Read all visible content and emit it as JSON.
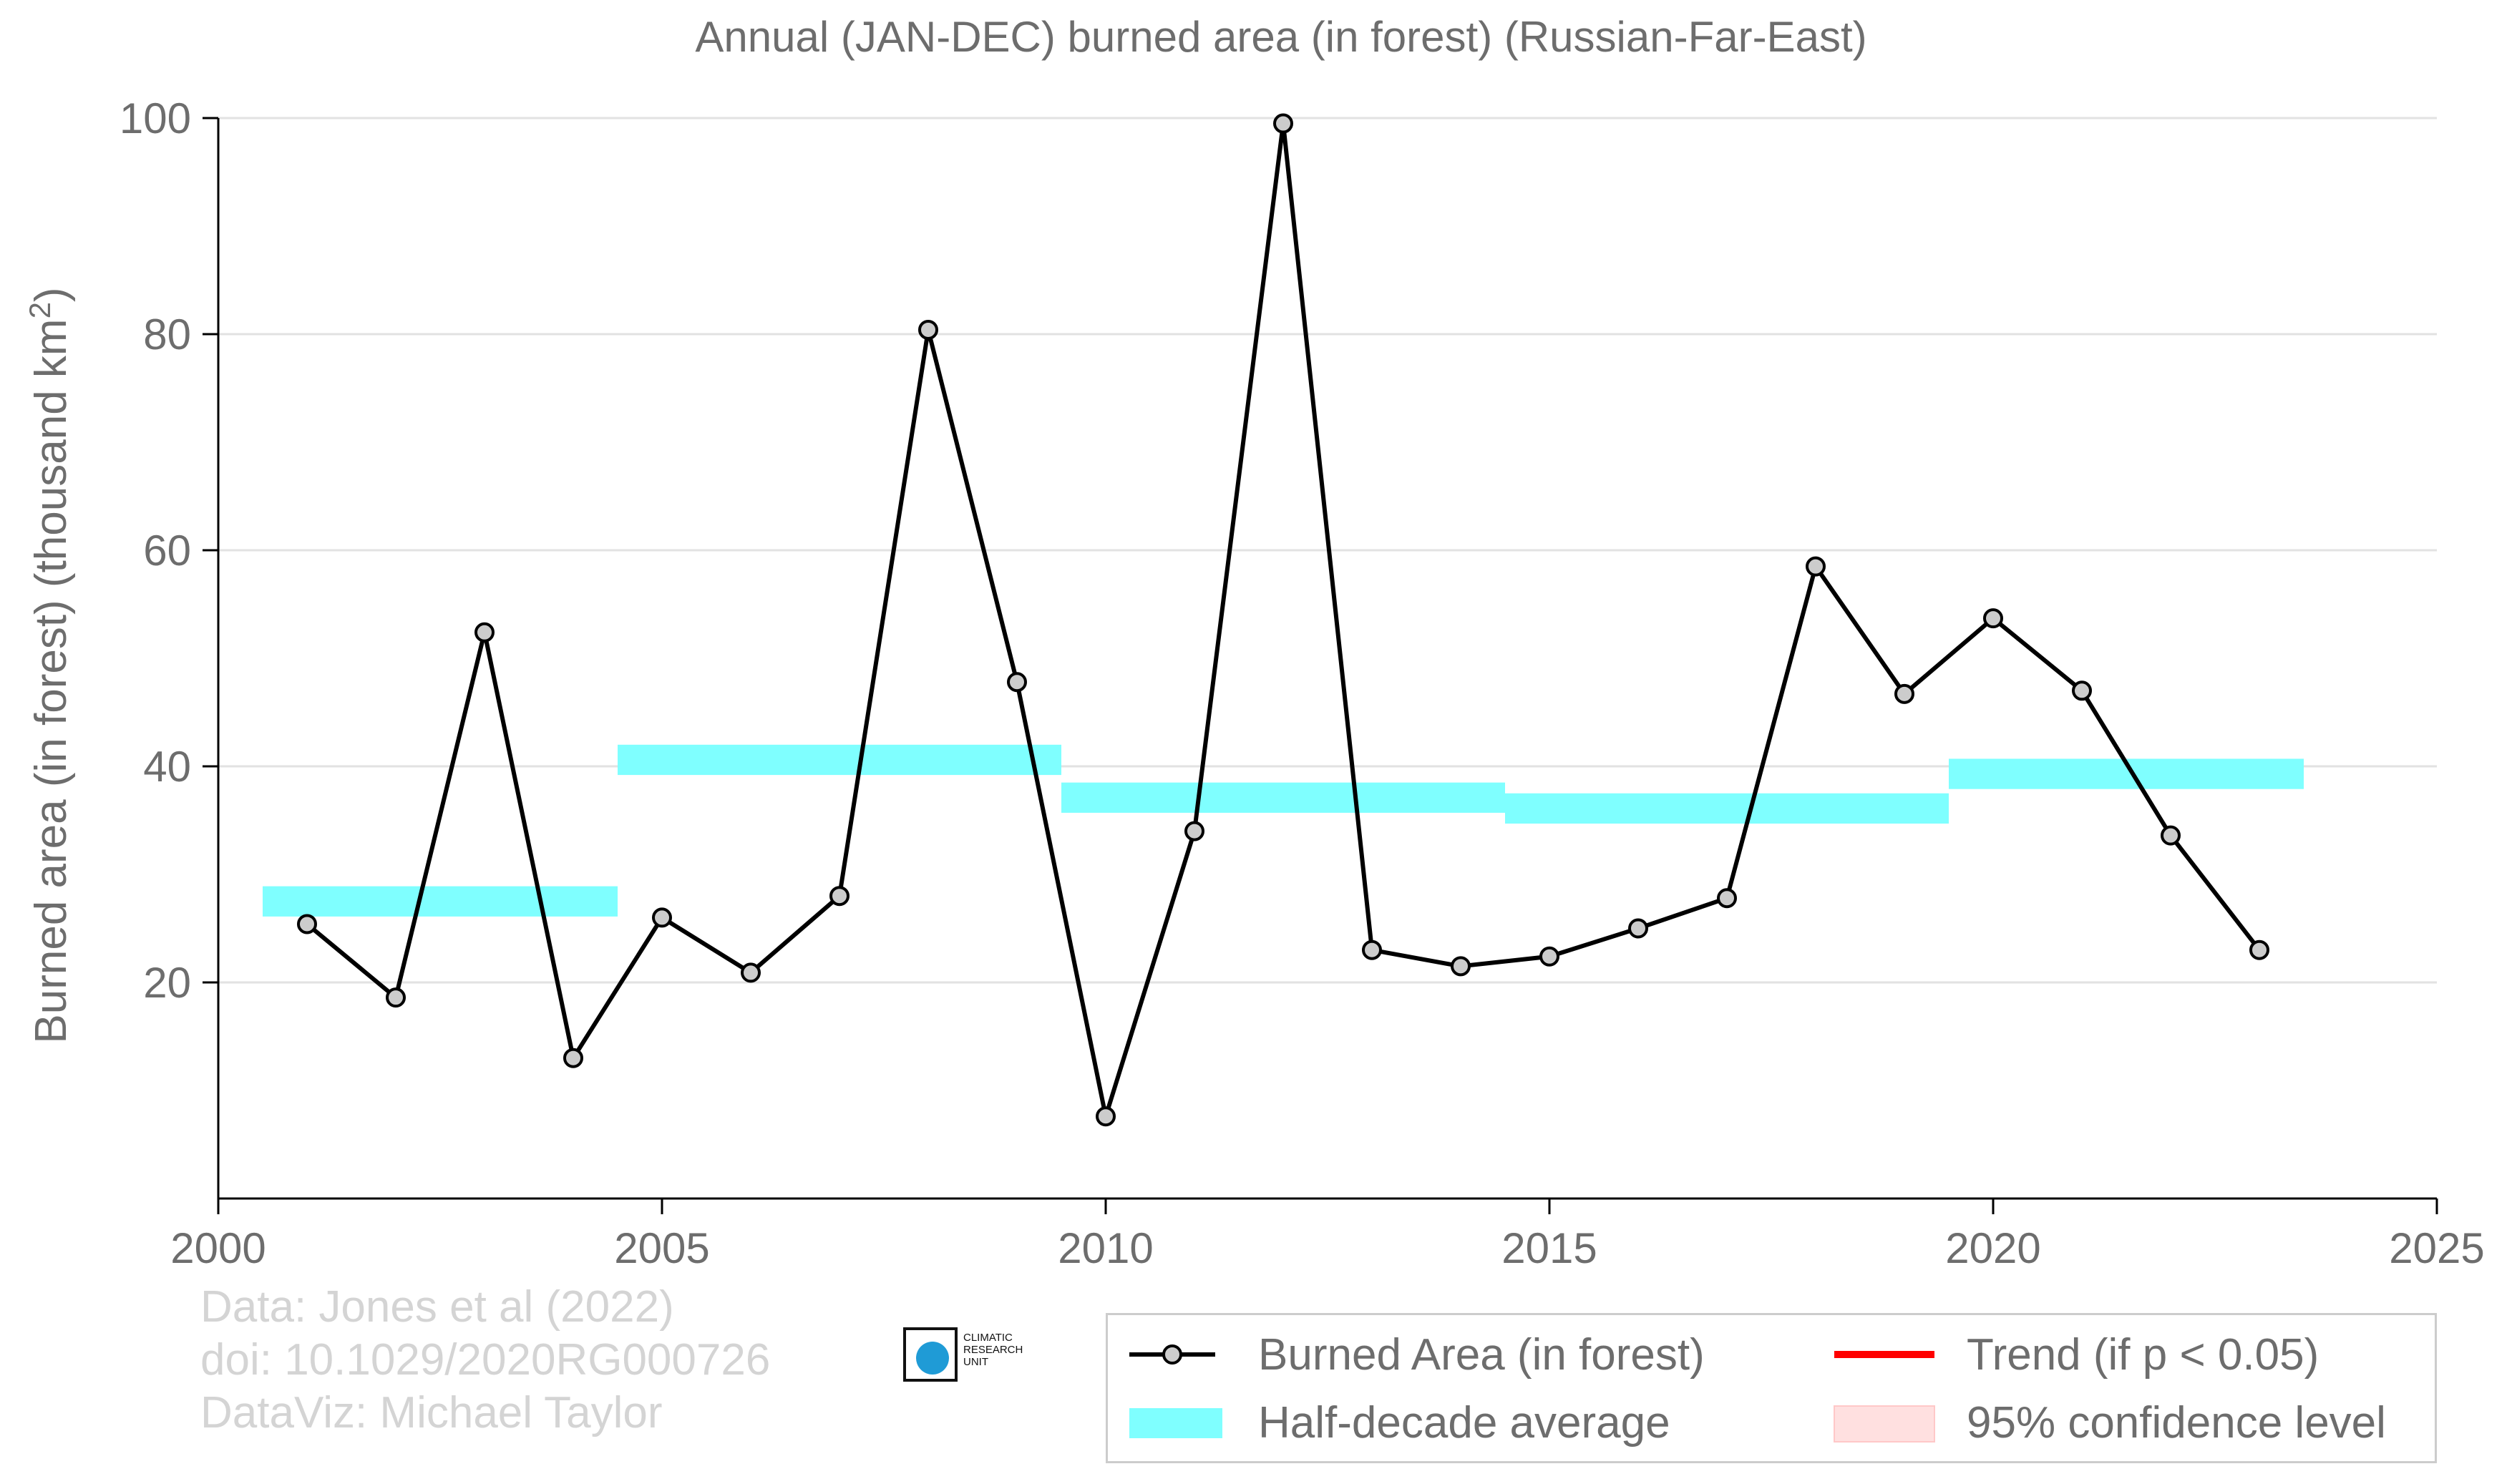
{
  "chart_data": {
    "type": "line",
    "title": "Annual (JAN-DEC) burned area (in forest) (Russian-Far-East)",
    "ylabel": "Burned area (in forest) (thousand km",
    "ylabel_sup": "2",
    "ylabel_end": ")",
    "xlabel": "",
    "xlim": [
      2000,
      2025
    ],
    "ylim": [
      0,
      100
    ],
    "x_ticks": [
      2000,
      2005,
      2010,
      2015,
      2020,
      2025
    ],
    "y_ticks": [
      20,
      40,
      60,
      80,
      100
    ],
    "grid": "horizontal",
    "series": [
      {
        "name": "Burned Area (in forest)",
        "color": "#000000",
        "marker_fill": "#cccccc",
        "x": [
          2001,
          2002,
          2003,
          2004,
          2005,
          2006,
          2007,
          2008,
          2009,
          2010,
          2011,
          2012,
          2013,
          2014,
          2015,
          2016,
          2017,
          2018,
          2019,
          2020,
          2021,
          2022,
          2023
        ],
        "y": [
          25.4,
          18.6,
          52.4,
          13.0,
          26.0,
          20.9,
          28.0,
          80.4,
          47.8,
          7.6,
          34.0,
          99.5,
          23.0,
          21.5,
          22.4,
          25.0,
          27.8,
          58.5,
          46.7,
          53.7,
          47.0,
          33.6,
          23.0
        ]
      }
    ],
    "half_decade_average": {
      "name": "Half-decade average",
      "color": "#7fffff",
      "periods": [
        {
          "x_start": 2000.5,
          "x_end": 2004.5,
          "value": 27.5
        },
        {
          "x_start": 2004.5,
          "x_end": 2009.5,
          "value": 40.6
        },
        {
          "x_start": 2009.5,
          "x_end": 2014.5,
          "value": 37.1
        },
        {
          "x_start": 2014.5,
          "x_end": 2019.5,
          "value": 36.1
        },
        {
          "x_start": 2019.5,
          "x_end": 2023.5,
          "value": 39.3
        }
      ]
    },
    "legend": {
      "position": "bottom-right",
      "entries": [
        {
          "label": "Burned Area (in forest)",
          "kind": "line-marker",
          "color": "#000000"
        },
        {
          "label": "Trend (if p < 0.05)",
          "kind": "line",
          "color": "#ff0000"
        },
        {
          "label": "Half-decade average",
          "kind": "band",
          "color": "#7fffff"
        },
        {
          "label": "95% confidence level",
          "kind": "band",
          "color": "#ffe0e0"
        }
      ]
    }
  },
  "credits": {
    "line1": "Data: Jones et al (2022)",
    "line2": "doi: 10.1029/2020RG000726",
    "line3": "DataViz: Michael Taylor"
  },
  "logo": {
    "text1": "CLIMATIC",
    "text2": "RESEARCH",
    "text3": "UNIT"
  }
}
